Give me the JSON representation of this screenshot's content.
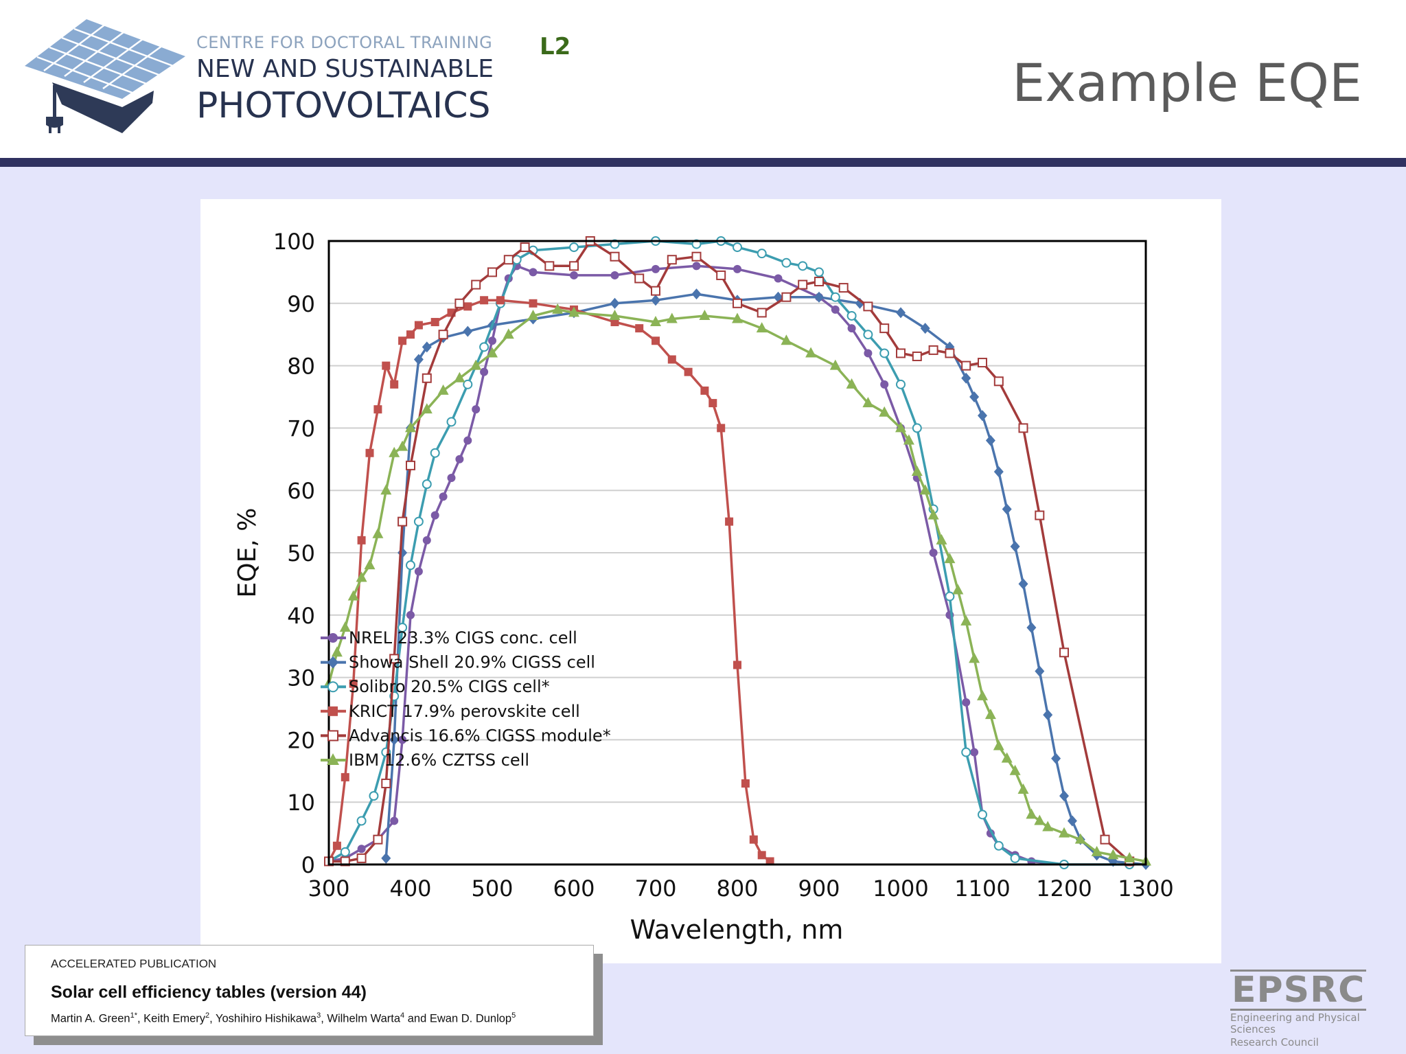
{
  "header": {
    "logo_line1": "CENTRE FOR DOCTORAL TRAINING",
    "logo_line2": "NEW AND SUSTAINABLE",
    "logo_line3": "PHOTOVOLTAICS",
    "slide_code": "L2",
    "title": "Example EQE"
  },
  "citation": {
    "kicker": "ACCELERATED PUBLICATION",
    "title": "Solar cell efficiency tables (version 44)",
    "authors": [
      {
        "name": "Martin A. Green",
        "sup": "1",
        "star": "*"
      },
      {
        "name": "Keith Emery",
        "sup": "2"
      },
      {
        "name": "Yoshihiro Hishikawa",
        "sup": "3"
      },
      {
        "name": "Wilhelm Warta",
        "sup": "4"
      },
      {
        "name": "Ewan D. Dunlop",
        "sup": "5"
      }
    ],
    "and_word": "and"
  },
  "funder": {
    "name": "EPSRC",
    "sub1": "Engineering and Physical Sciences",
    "sub2": "Research Council"
  },
  "chart_data": {
    "type": "line",
    "xlabel": "Wavelength, nm",
    "ylabel": "EQE, %",
    "xlim": [
      300,
      1300
    ],
    "ylim": [
      0,
      100
    ],
    "xticks": [
      300,
      400,
      500,
      600,
      700,
      800,
      900,
      1000,
      1100,
      1200,
      1300
    ],
    "yticks": [
      0,
      10,
      20,
      30,
      40,
      50,
      60,
      70,
      80,
      90,
      100
    ],
    "grid": "horizontal",
    "legend_position": "center-left",
    "series": [
      {
        "name": "NREL 23.3% CIGS conc. cell",
        "color": "#7b5aa6",
        "marker": "circle",
        "points": [
          [
            300,
            0.5
          ],
          [
            320,
            1
          ],
          [
            340,
            2.5
          ],
          [
            360,
            4
          ],
          [
            380,
            7
          ],
          [
            390,
            20
          ],
          [
            400,
            40
          ],
          [
            410,
            47
          ],
          [
            420,
            52
          ],
          [
            430,
            56
          ],
          [
            440,
            59
          ],
          [
            450,
            62
          ],
          [
            460,
            65
          ],
          [
            470,
            68
          ],
          [
            480,
            73
          ],
          [
            490,
            79
          ],
          [
            500,
            84
          ],
          [
            510,
            90
          ],
          [
            520,
            94
          ],
          [
            530,
            96
          ],
          [
            550,
            95
          ],
          [
            600,
            94.5
          ],
          [
            650,
            94.5
          ],
          [
            700,
            95.5
          ],
          [
            750,
            96
          ],
          [
            800,
            95.5
          ],
          [
            850,
            94
          ],
          [
            900,
            91
          ],
          [
            920,
            89
          ],
          [
            940,
            86
          ],
          [
            960,
            82
          ],
          [
            980,
            77
          ],
          [
            1000,
            70
          ],
          [
            1020,
            62
          ],
          [
            1040,
            50
          ],
          [
            1060,
            40
          ],
          [
            1080,
            26
          ],
          [
            1090,
            18
          ],
          [
            1100,
            8
          ],
          [
            1110,
            5
          ],
          [
            1120,
            3
          ],
          [
            1140,
            1.5
          ],
          [
            1160,
            0.5
          ],
          [
            1200,
            0
          ]
        ]
      },
      {
        "name": "Showa Shell 20.9% CIGSS cell",
        "color": "#4a74ad",
        "marker": "diamond",
        "points": [
          [
            370,
            1
          ],
          [
            380,
            20
          ],
          [
            390,
            50
          ],
          [
            400,
            70
          ],
          [
            410,
            81
          ],
          [
            420,
            83
          ],
          [
            440,
            84.5
          ],
          [
            470,
            85.5
          ],
          [
            500,
            86.5
          ],
          [
            550,
            87.5
          ],
          [
            600,
            88.5
          ],
          [
            650,
            90
          ],
          [
            700,
            90.5
          ],
          [
            750,
            91.5
          ],
          [
            800,
            90.5
          ],
          [
            850,
            91
          ],
          [
            900,
            91
          ],
          [
            950,
            90
          ],
          [
            1000,
            88.5
          ],
          [
            1030,
            86
          ],
          [
            1060,
            83
          ],
          [
            1080,
            78
          ],
          [
            1090,
            75
          ],
          [
            1100,
            72
          ],
          [
            1110,
            68
          ],
          [
            1120,
            63
          ],
          [
            1130,
            57
          ],
          [
            1140,
            51
          ],
          [
            1150,
            45
          ],
          [
            1160,
            38
          ],
          [
            1170,
            31
          ],
          [
            1180,
            24
          ],
          [
            1190,
            17
          ],
          [
            1200,
            11
          ],
          [
            1210,
            7
          ],
          [
            1220,
            4
          ],
          [
            1240,
            1.5
          ],
          [
            1260,
            0.5
          ],
          [
            1300,
            0
          ]
        ]
      },
      {
        "name": "Solibro 20.5% CIGS cell*",
        "color": "#3c9db0",
        "marker": "circle-open",
        "points": [
          [
            300,
            0.5
          ],
          [
            320,
            2
          ],
          [
            340,
            7
          ],
          [
            355,
            11
          ],
          [
            370,
            18
          ],
          [
            380,
            27
          ],
          [
            390,
            38
          ],
          [
            400,
            48
          ],
          [
            410,
            55
          ],
          [
            420,
            61
          ],
          [
            430,
            66
          ],
          [
            450,
            71
          ],
          [
            470,
            77
          ],
          [
            490,
            83
          ],
          [
            510,
            90
          ],
          [
            530,
            97
          ],
          [
            550,
            98.5
          ],
          [
            600,
            99
          ],
          [
            650,
            99.5
          ],
          [
            700,
            100
          ],
          [
            750,
            99.5
          ],
          [
            780,
            100
          ],
          [
            800,
            99
          ],
          [
            830,
            98
          ],
          [
            860,
            96.5
          ],
          [
            880,
            96
          ],
          [
            900,
            95
          ],
          [
            920,
            91
          ],
          [
            940,
            88
          ],
          [
            960,
            85
          ],
          [
            980,
            82
          ],
          [
            1000,
            77
          ],
          [
            1020,
            70
          ],
          [
            1040,
            57
          ],
          [
            1060,
            43
          ],
          [
            1080,
            18
          ],
          [
            1100,
            8
          ],
          [
            1120,
            3
          ],
          [
            1140,
            1
          ],
          [
            1200,
            0
          ],
          [
            1280,
            0
          ]
        ]
      },
      {
        "name": "KRICT 17.9% perovskite cell",
        "color": "#c0504d",
        "marker": "square",
        "points": [
          [
            300,
            0.5
          ],
          [
            310,
            3
          ],
          [
            320,
            14
          ],
          [
            330,
            29
          ],
          [
            340,
            52
          ],
          [
            350,
            66
          ],
          [
            360,
            73
          ],
          [
            370,
            80
          ],
          [
            380,
            77
          ],
          [
            390,
            84
          ],
          [
            400,
            85
          ],
          [
            410,
            86.5
          ],
          [
            430,
            87
          ],
          [
            450,
            88.5
          ],
          [
            470,
            89.5
          ],
          [
            490,
            90.5
          ],
          [
            510,
            90.5
          ],
          [
            550,
            90
          ],
          [
            600,
            89
          ],
          [
            650,
            87
          ],
          [
            680,
            86
          ],
          [
            700,
            84
          ],
          [
            720,
            81
          ],
          [
            740,
            79
          ],
          [
            760,
            76
          ],
          [
            770,
            74
          ],
          [
            780,
            70
          ],
          [
            790,
            55
          ],
          [
            800,
            32
          ],
          [
            810,
            13
          ],
          [
            820,
            4
          ],
          [
            830,
            1.5
          ],
          [
            840,
            0.5
          ]
        ]
      },
      {
        "name": "Advancis 16.6% CIGSS module*",
        "color": "#a33b3b",
        "marker": "square-open",
        "points": [
          [
            300,
            0.5
          ],
          [
            320,
            0.5
          ],
          [
            340,
            1
          ],
          [
            360,
            4
          ],
          [
            370,
            13
          ],
          [
            380,
            33
          ],
          [
            390,
            55
          ],
          [
            400,
            64
          ],
          [
            420,
            78
          ],
          [
            440,
            85
          ],
          [
            460,
            90
          ],
          [
            480,
            93
          ],
          [
            500,
            95
          ],
          [
            520,
            97
          ],
          [
            540,
            99
          ],
          [
            570,
            96
          ],
          [
            600,
            96
          ],
          [
            620,
            100
          ],
          [
            650,
            97.5
          ],
          [
            680,
            94
          ],
          [
            700,
            92
          ],
          [
            720,
            97
          ],
          [
            750,
            97.5
          ],
          [
            780,
            94.5
          ],
          [
            800,
            90
          ],
          [
            830,
            88.5
          ],
          [
            860,
            91
          ],
          [
            880,
            93
          ],
          [
            900,
            93.5
          ],
          [
            930,
            92.5
          ],
          [
            960,
            89.5
          ],
          [
            980,
            86
          ],
          [
            1000,
            82
          ],
          [
            1020,
            81.5
          ],
          [
            1040,
            82.5
          ],
          [
            1060,
            82
          ],
          [
            1080,
            80
          ],
          [
            1100,
            80.5
          ],
          [
            1120,
            77.5
          ],
          [
            1150,
            70
          ],
          [
            1170,
            56
          ],
          [
            1200,
            34
          ],
          [
            1250,
            4
          ],
          [
            1280,
            0.5
          ]
        ]
      },
      {
        "name": "IBM 12.6% CZTSS cell",
        "color": "#8bb356",
        "marker": "triangle",
        "points": [
          [
            300,
            29
          ],
          [
            310,
            34
          ],
          [
            320,
            38
          ],
          [
            330,
            43
          ],
          [
            340,
            46
          ],
          [
            350,
            48
          ],
          [
            360,
            53
          ],
          [
            370,
            60
          ],
          [
            380,
            66
          ],
          [
            390,
            67
          ],
          [
            400,
            70
          ],
          [
            420,
            73
          ],
          [
            440,
            76
          ],
          [
            460,
            78
          ],
          [
            480,
            80
          ],
          [
            500,
            82
          ],
          [
            520,
            85
          ],
          [
            550,
            88
          ],
          [
            580,
            89
          ],
          [
            600,
            88.5
          ],
          [
            650,
            88
          ],
          [
            700,
            87
          ],
          [
            720,
            87.5
          ],
          [
            760,
            88
          ],
          [
            800,
            87.5
          ],
          [
            830,
            86
          ],
          [
            860,
            84
          ],
          [
            890,
            82
          ],
          [
            920,
            80
          ],
          [
            940,
            77
          ],
          [
            960,
            74
          ],
          [
            980,
            72.5
          ],
          [
            1000,
            70
          ],
          [
            1010,
            68
          ],
          [
            1020,
            63
          ],
          [
            1030,
            60
          ],
          [
            1040,
            56
          ],
          [
            1050,
            52
          ],
          [
            1060,
            49
          ],
          [
            1070,
            44
          ],
          [
            1080,
            39
          ],
          [
            1090,
            33
          ],
          [
            1100,
            27
          ],
          [
            1110,
            24
          ],
          [
            1120,
            19
          ],
          [
            1130,
            17
          ],
          [
            1140,
            15
          ],
          [
            1150,
            12
          ],
          [
            1160,
            8
          ],
          [
            1170,
            7
          ],
          [
            1180,
            6
          ],
          [
            1200,
            5
          ],
          [
            1220,
            4
          ],
          [
            1240,
            2
          ],
          [
            1260,
            1.5
          ],
          [
            1280,
            1
          ],
          [
            1300,
            0.5
          ]
        ]
      }
    ]
  }
}
